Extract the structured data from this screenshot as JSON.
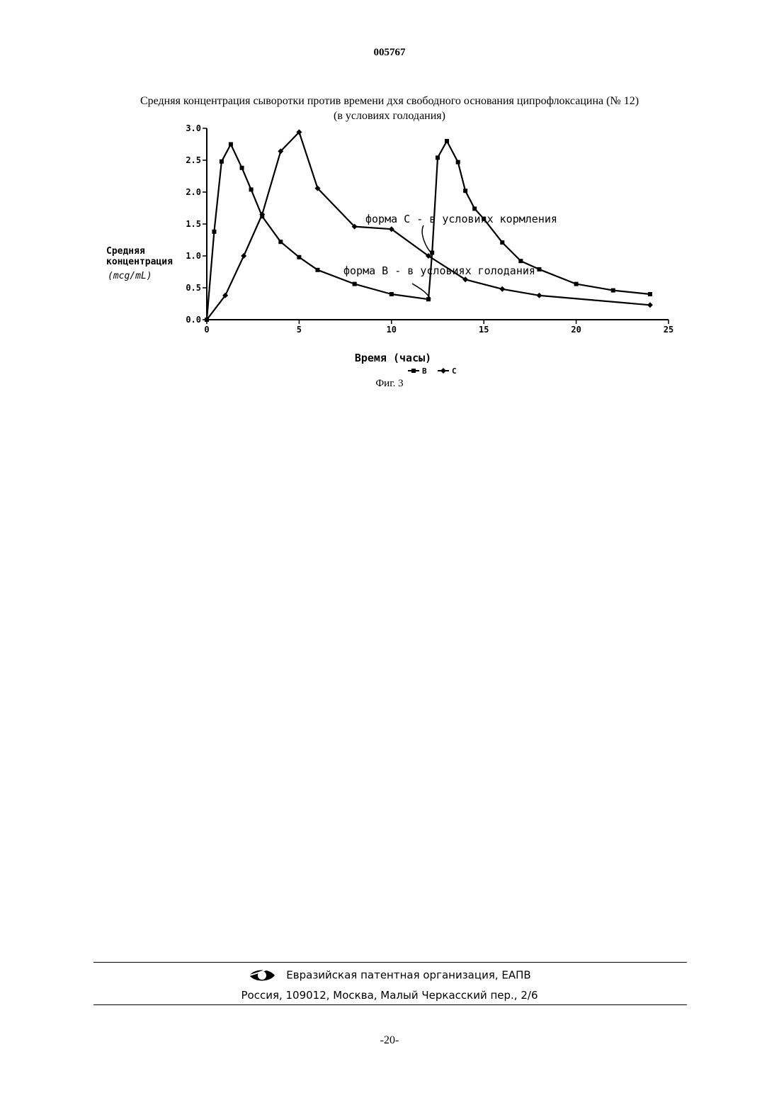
{
  "document": {
    "number": "005767",
    "figure_title_line1": "Средняя концентрация сыворотки против времени дхя свободного основания ципрофлоксацина (№ 12)",
    "figure_title_line2": "(в условиях голодания)",
    "figure_caption": "Фиг. 3",
    "page_number": "-20-"
  },
  "footer": {
    "organization": "Евразийская патентная организация, ЕАПВ",
    "address": "Россия, 109012, Москва, Малый Черкасский пер., 2/6",
    "logo_icon": "eapo-eye-logo-icon"
  },
  "chart_data": {
    "type": "line",
    "xlabel": "Время (часы)",
    "ylabel_line1": "Средняя",
    "ylabel_line2": "концентрация",
    "ylabel_unit": "(mcg/mL)",
    "xlim": [
      0,
      25
    ],
    "ylim": [
      0,
      3.0
    ],
    "x_ticks": [
      0,
      5,
      10,
      15,
      20,
      25
    ],
    "x_tick_labels": [
      "0",
      "5",
      "10",
      "15",
      "20",
      "25"
    ],
    "y_ticks": [
      0.0,
      0.5,
      1.0,
      1.5,
      2.0,
      2.5,
      3.0
    ],
    "y_tick_labels": [
      "0.0",
      "0.5",
      "1.0",
      "1.5",
      "2.0",
      "2.5",
      "3.0"
    ],
    "grid": false,
    "legend_position": "bottom-center",
    "series": [
      {
        "name": "B",
        "marker": "square",
        "x": [
          0,
          0.4,
          0.8,
          1.3,
          1.9,
          2.4,
          3,
          4,
          5,
          6,
          8,
          10,
          12,
          12.2,
          12.5,
          13,
          13.6,
          14,
          14.5,
          15,
          16,
          17,
          18,
          20,
          22,
          24
        ],
        "y": [
          0,
          1.38,
          2.48,
          2.75,
          2.38,
          2.04,
          1.62,
          1.22,
          0.98,
          0.78,
          0.56,
          0.4,
          0.32,
          1.05,
          2.54,
          2.8,
          2.47,
          2.02,
          1.74,
          1.58,
          1.21,
          0.92,
          0.79,
          0.56,
          0.46,
          0.4
        ]
      },
      {
        "name": "C",
        "marker": "diamond",
        "x": [
          0,
          1,
          2,
          3,
          4,
          5,
          6,
          8,
          10,
          12,
          14,
          16,
          18,
          24
        ],
        "y": [
          0,
          0.38,
          1.0,
          1.65,
          2.64,
          2.94,
          2.06,
          1.46,
          1.42,
          1.0,
          0.63,
          0.48,
          0.38,
          0.23
        ]
      }
    ],
    "annotations": [
      {
        "text": "форма C - в условиях кормления",
        "series": "C"
      },
      {
        "text": "форма B - в условиях голодания",
        "series": "B"
      }
    ]
  }
}
